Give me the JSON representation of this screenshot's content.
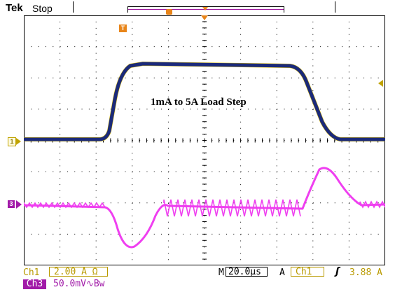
{
  "header": {
    "brand": "Tek",
    "acquisition_state": "Stop",
    "trigger_label": "T"
  },
  "plot": {
    "annotation": "1mA to 5A Load Step",
    "ch1_marker": "1",
    "ch3_marker": "3",
    "trace_colors": {
      "ch1": "#1b2a7a",
      "ch3": "#ef3ff0"
    }
  },
  "readout": {
    "ch1_name": "Ch1",
    "ch1_scale": "2.00 A Ω",
    "ch3_name": "Ch3",
    "ch3_scale": "50.0mV∿Bw",
    "timebase_prefix": "M",
    "timebase": "20.0µs",
    "trigger_mode": "A",
    "trigger_source": "Ch1",
    "trigger_slope": "ʃ",
    "trigger_level": "3.88 A"
  }
}
